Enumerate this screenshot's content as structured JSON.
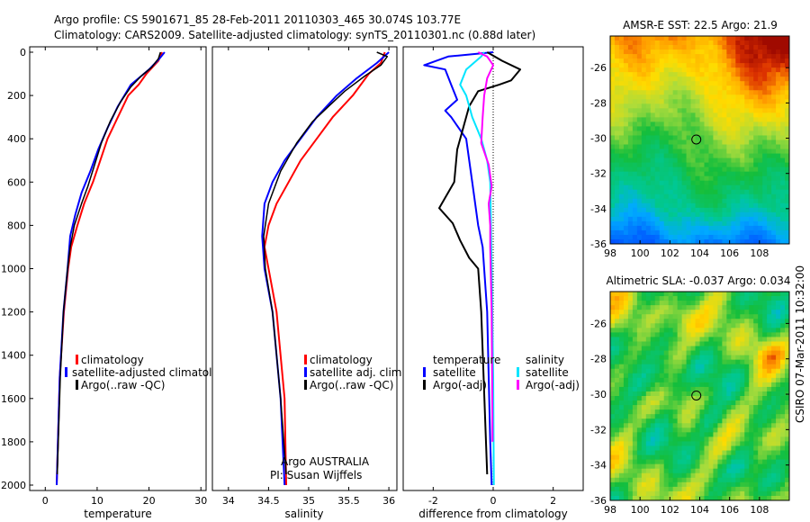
{
  "header": {
    "line1": "Argo profile: CS 5901671_85 28-Feb-2011 20110303_465 30.074S 103.77E",
    "line2": "Climatology: CARS2009. Satellite-adjusted climatology: synTS_20110301.nc (0.88d later)"
  },
  "side_label": "CSIRO 07-Mar-2011 10:32:00",
  "colors": {
    "red": "#ff0000",
    "blue": "#0000ff",
    "black": "#000000",
    "cyan": "#00e5ff",
    "magenta": "#ff00ff"
  },
  "chart_data": [
    {
      "type": "line",
      "xlabel": "temperature",
      "xlim": [
        -3,
        31
      ],
      "ylim": [
        0,
        2000
      ],
      "y_reversed": true,
      "xticks": [
        0,
        10,
        20,
        30
      ],
      "yticks": [
        0,
        200,
        400,
        600,
        800,
        1000,
        1200,
        1400,
        1600,
        1800,
        2000
      ],
      "legend": [
        "climatology",
        "satellite-adjusted climatolog",
        "Argo(..raw -QC)"
      ],
      "series": [
        {
          "name": "climatology",
          "color": "red",
          "width": 2,
          "x": [
            22.5,
            21.8,
            19.5,
            18,
            16,
            14,
            12,
            10.6,
            9.2,
            7.5,
            6.2,
            5,
            4.4,
            3.6,
            2.8,
            2.2
          ],
          "y": [
            0,
            40,
            100,
            150,
            200,
            300,
            400,
            500,
            600,
            700,
            800,
            900,
            1000,
            1200,
            1500,
            2000
          ]
        },
        {
          "name": "satellite-adjusted climatolog",
          "color": "blue",
          "width": 2,
          "x": [
            23,
            22,
            20,
            18.5,
            16.5,
            14,
            12,
            10.2,
            8.7,
            7,
            5.8,
            4.8,
            4.3,
            3.5,
            2.8,
            2.2
          ],
          "y": [
            0,
            30,
            80,
            110,
            150,
            250,
            350,
            450,
            550,
            650,
            750,
            850,
            1000,
            1200,
            1500,
            2000
          ]
        },
        {
          "name": "Argo(..raw -QC)",
          "color": "black",
          "width": 1.5,
          "x": [
            22.2,
            21.8,
            20.5,
            18.5,
            16.5,
            14.5,
            12.5,
            10.8,
            9.5,
            8.2,
            7,
            5.6,
            4.8,
            4.3,
            3.5,
            2.9,
            2.3
          ],
          "y": [
            0,
            30,
            70,
            110,
            160,
            230,
            320,
            420,
            520,
            620,
            700,
            800,
            900,
            1000,
            1200,
            1500,
            1950
          ]
        }
      ]
    },
    {
      "type": "line",
      "xlabel": "salinity",
      "xlim": [
        33.8,
        36.1
      ],
      "ylim": [
        0,
        2000
      ],
      "y_reversed": true,
      "xticks": [
        34,
        34.5,
        35,
        35.5,
        36
      ],
      "xticklabels": [
        "34",
        "34.5",
        "35",
        "35.5",
        "36"
      ],
      "legend": [
        "climatology",
        "satellite adj. clim.",
        "Argo(..raw -QC)"
      ],
      "annotation": [
        "Argo AUSTRALIA",
        "PI: Susan Wijffels"
      ],
      "series": [
        {
          "name": "climatology",
          "color": "red",
          "width": 2,
          "x": [
            35.95,
            35.9,
            35.75,
            35.55,
            35.3,
            35.1,
            34.9,
            34.75,
            34.6,
            34.5,
            34.45,
            34.5,
            34.6,
            34.7,
            34.72
          ],
          "y": [
            0,
            50,
            100,
            200,
            300,
            400,
            500,
            600,
            700,
            800,
            900,
            1000,
            1200,
            1600,
            2000
          ]
        },
        {
          "name": "satellite adj. clim.",
          "color": "blue",
          "width": 2,
          "x": [
            36,
            35.85,
            35.6,
            35.35,
            35.1,
            34.9,
            34.7,
            34.55,
            34.45,
            34.42,
            34.45,
            34.55,
            34.65,
            34.7
          ],
          "y": [
            0,
            50,
            120,
            200,
            300,
            400,
            500,
            600,
            700,
            850,
            1000,
            1200,
            1600,
            2000
          ]
        },
        {
          "name": "Argo(..raw -QC)",
          "color": "black",
          "width": 1.5,
          "x": [
            35.85,
            35.98,
            35.9,
            35.7,
            35.45,
            35.25,
            35.05,
            34.85,
            34.65,
            34.5,
            34.44,
            34.46,
            34.55,
            34.65,
            34.72
          ],
          "y": [
            0,
            20,
            60,
            110,
            180,
            250,
            320,
            420,
            550,
            700,
            850,
            1000,
            1200,
            1600,
            1950
          ]
        }
      ]
    },
    {
      "type": "line",
      "xlabel": "difference from climatology",
      "xlim": [
        -3,
        3
      ],
      "ylim": [
        0,
        2000
      ],
      "y_reversed": true,
      "xticks": [
        -2,
        0,
        2
      ],
      "zero_line": true,
      "legend_headers": [
        "temperature",
        "salinity"
      ],
      "legend": [
        "satellite",
        "Argo(-adj)",
        "satellite",
        "Argo(-adj)"
      ],
      "series": [
        {
          "name": "satellite",
          "group": "temperature",
          "color": "blue",
          "width": 2,
          "x": [
            0,
            -1.5,
            -2.3,
            -1.6,
            -1.4,
            -1.2,
            -1.6,
            -1.4,
            -0.9,
            -0.7,
            -0.5,
            -0.35,
            -0.2,
            -0.15,
            -0.1,
            -0.05
          ],
          "y": [
            0,
            20,
            60,
            80,
            150,
            220,
            270,
            300,
            400,
            600,
            800,
            900,
            1200,
            1500,
            1800,
            2000
          ]
        },
        {
          "name": "Argo(-adj)",
          "group": "temperature",
          "color": "black",
          "width": 2,
          "x": [
            -0.2,
            0.3,
            0.9,
            0.6,
            0.2,
            -0.5,
            -0.8,
            -1.2,
            -1.3,
            -1.8,
            -1.35,
            -1.1,
            -0.8,
            -0.5,
            -0.4,
            -0.2
          ],
          "y": [
            0,
            40,
            80,
            130,
            150,
            180,
            250,
            450,
            600,
            720,
            790,
            870,
            950,
            1000,
            1200,
            1950
          ]
        },
        {
          "name": "satellite",
          "group": "salinity",
          "color": "cyan",
          "width": 2,
          "x": [
            -0.3,
            -0.4,
            -0.9,
            -1.1,
            -0.9,
            -0.7,
            -0.4,
            -0.2,
            -0.1,
            -0.05,
            0,
            0.02
          ],
          "y": [
            0,
            20,
            80,
            150,
            200,
            300,
            400,
            500,
            600,
            1000,
            1500,
            2000
          ]
        },
        {
          "name": "Argo(-adj)",
          "group": "salinity",
          "color": "magenta",
          "width": 2,
          "x": [
            -0.5,
            -0.2,
            0,
            -0.2,
            -0.3,
            -0.35,
            -0.4,
            -0.15,
            -0.05,
            -0.15,
            -0.1,
            -0.1,
            -0.05,
            -0.02
          ],
          "y": [
            0,
            20,
            60,
            120,
            200,
            300,
            420,
            520,
            620,
            700,
            800,
            900,
            1200,
            1800
          ]
        }
      ]
    }
  ],
  "maps": [
    {
      "title": "AMSR-E SST: 22.5 Argo: 21.9",
      "type": "heatmap",
      "field": "sst",
      "xlim": [
        98,
        110
      ],
      "ylim": [
        -36,
        -24.2
      ],
      "xticks": [
        98,
        100,
        102,
        104,
        106,
        108
      ],
      "yticks": [
        -26,
        -28,
        -30,
        -32,
        -34,
        -36
      ],
      "marker": {
        "lon": 103.77,
        "lat": -30.074
      }
    },
    {
      "title": "Altimetric SLA: -0.037 Argo: 0.034",
      "type": "heatmap",
      "field": "sla",
      "xlim": [
        98,
        110
      ],
      "ylim": [
        -36,
        -24.2
      ],
      "xticks": [
        98,
        100,
        102,
        104,
        106,
        108
      ],
      "yticks": [
        -26,
        -28,
        -30,
        -32,
        -34,
        -36
      ],
      "marker": {
        "lon": 103.77,
        "lat": -30.074
      }
    }
  ]
}
